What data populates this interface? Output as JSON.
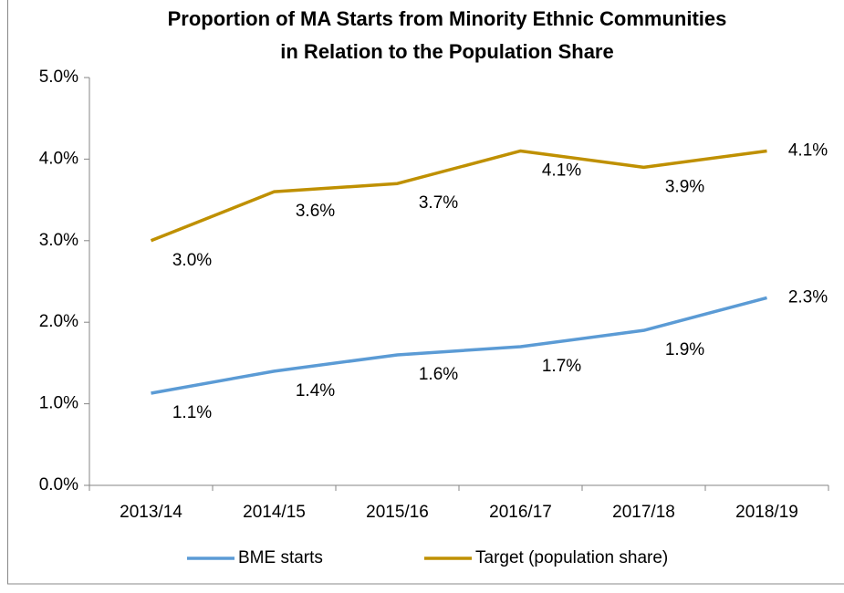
{
  "chart_data": {
    "type": "line",
    "title": [
      "Proportion of MA Starts from Minority Ethnic Communities",
      "in Relation to the Population Share"
    ],
    "categories": [
      "2013/14",
      "2014/15",
      "2015/16",
      "2016/17",
      "2017/18",
      "2018/19"
    ],
    "series": [
      {
        "name": "BME starts",
        "color": "#5b9bd5",
        "values": [
          1.13,
          1.4,
          1.6,
          1.7,
          1.9,
          2.3
        ],
        "value_labels": [
          "1.1%",
          "1.4%",
          "1.6%",
          "1.7%",
          "1.9%",
          "2.3%"
        ]
      },
      {
        "name": "Target (population share)",
        "color": "#bf9000",
        "values": [
          3.0,
          3.6,
          3.7,
          4.1,
          3.9,
          4.1
        ],
        "value_labels": [
          "3.0%",
          "3.6%",
          "3.7%",
          "4.1%",
          "3.9%",
          "4.1%"
        ]
      }
    ],
    "ylim": [
      0,
      5
    ],
    "yticks": [
      {
        "value": 0,
        "label": "0.0%"
      },
      {
        "value": 1,
        "label": "1.0%"
      },
      {
        "value": 2,
        "label": "2.0%"
      },
      {
        "value": 3,
        "label": "3.0%"
      },
      {
        "value": 4,
        "label": "4.0%"
      },
      {
        "value": 5,
        "label": "5.0%"
      }
    ],
    "grid": false,
    "legend": "bottom"
  }
}
